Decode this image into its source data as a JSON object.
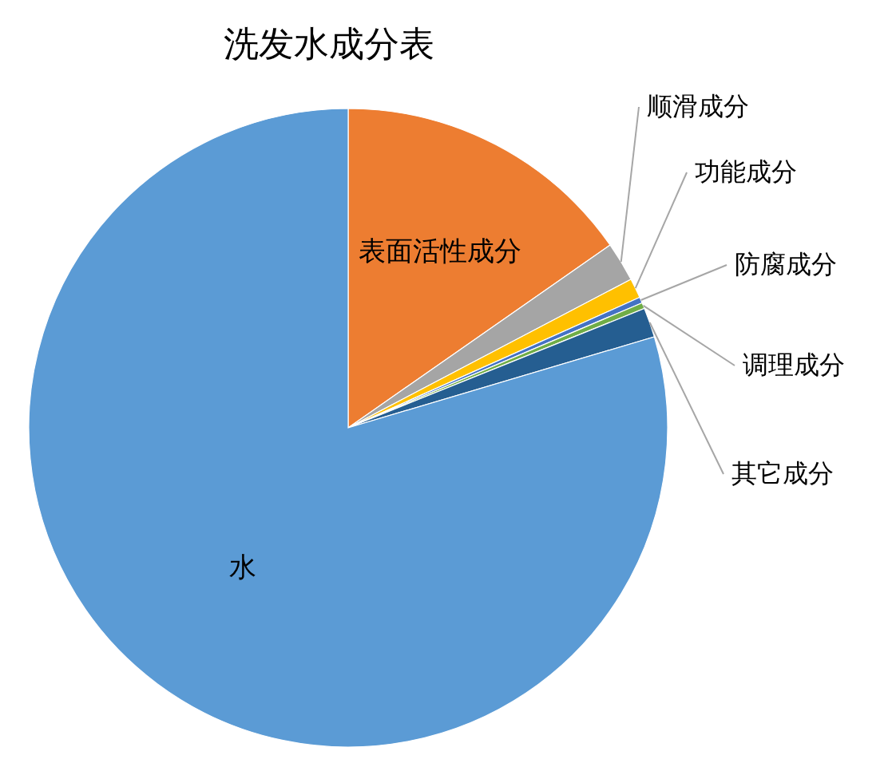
{
  "chart_data": {
    "type": "pie",
    "title": "洗发水成分表",
    "categories": [
      "表面活性成分",
      "顺滑成分",
      "功能成分",
      "防腐成分",
      "调理成分",
      "其它成分",
      "水"
    ],
    "values": [
      15.3,
      2.0,
      1.0,
      0.3,
      0.3,
      1.5,
      79.6
    ],
    "colors": [
      "#ed7d31",
      "#a5a5a5",
      "#ffc000",
      "#4472c4",
      "#70ad47",
      "#255e91",
      "#5b9bd5"
    ],
    "legend": false
  }
}
